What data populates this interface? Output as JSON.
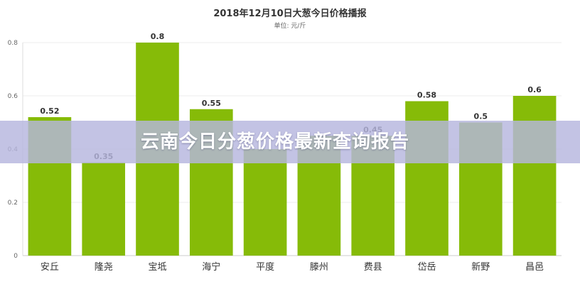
{
  "banner": {
    "text": "云南今日分葱价格最新查询报告"
  },
  "chart_data": {
    "type": "bar",
    "title": "2018年12月10日大葱今日价格播报",
    "subtitle": "单位: 元/斤",
    "categories": [
      "安丘",
      "隆尧",
      "宝坻",
      "海宁",
      "平度",
      "滕州",
      "费县",
      "岱岳",
      "新野",
      "昌邑"
    ],
    "values": [
      0.52,
      0.35,
      0.8,
      0.55,
      0.4,
      0.45,
      0.45,
      0.58,
      0.5,
      0.6
    ],
    "data_labels": [
      "0.52",
      "0.35",
      "0.8",
      "0.55",
      "",
      "",
      "0.45",
      "0.58",
      "0.5",
      "0.6"
    ],
    "yticks": [
      "0",
      "0.2",
      "0.4",
      "0.6",
      "0.8"
    ],
    "ylim": [
      0,
      0.8
    ],
    "grid": true,
    "bar_color": "#86bb08"
  }
}
